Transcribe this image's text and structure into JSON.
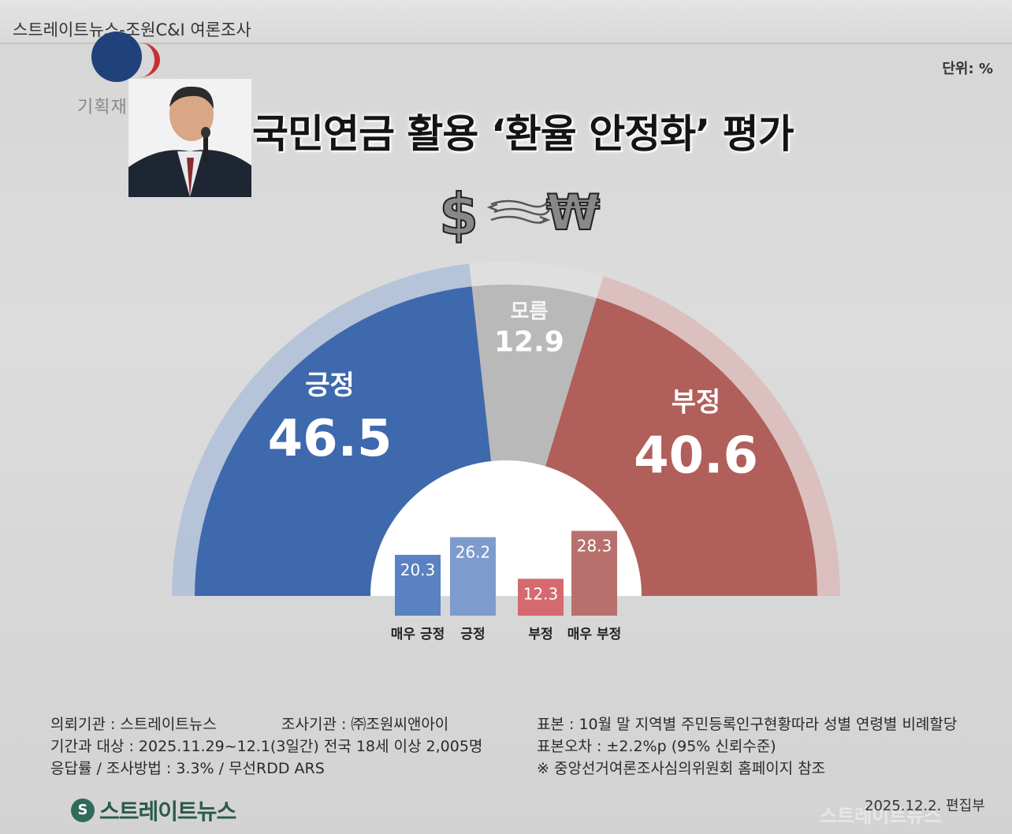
{
  "header": {
    "source_line": "스트레이트뉴스-조원C&I 여론조사"
  },
  "unit_label": "단위: %",
  "emblem_text": "기획재정부",
  "title": "국민연금 활용 ‘환율 안정화’ 평가",
  "chart_data": [
    {
      "type": "pie",
      "title": "국민연금 활용 ‘환율 안정화’ 평가",
      "style": "semicircle-donut",
      "categories": [
        "긍정",
        "모름",
        "부정"
      ],
      "values": [
        46.5,
        12.9,
        40.6
      ],
      "colors": [
        "#3f69ad",
        "#b9b9b9",
        "#b05f5a"
      ]
    },
    {
      "type": "bar",
      "categories": [
        "매우 긍정",
        "긍정",
        "부정",
        "매우 부정"
      ],
      "values": [
        20.3,
        26.2,
        12.3,
        28.3
      ],
      "colors": [
        "#5a81c1",
        "#7d9ccd",
        "#d46a6f",
        "#b8706c"
      ]
    }
  ],
  "footer": {
    "client": "의뢰기관 : 스트레이트뉴스",
    "agency": "조사기관 : ㈜조원씨앤아이",
    "period": "기간과 대상 : 2025.11.29~12.1(3일간)   전국 18세 이상  2,005명",
    "method": "응답률 / 조사방법 : 3.3% / 무선RDD ARS",
    "sample": "표본 : 10월 말 지역별 주민등록인구현황따라 성별 연령별 비례할당",
    "error": "표본오차 : ±2.2%p (95% 신뢰수준)",
    "note": "※ 중앙선거여론조사심의위원회 홈페이지 참조"
  },
  "logo_text": "스트레이트뉴스",
  "date_line": "2025.12.2. 편집부",
  "watermark": "스트레이트뉴스"
}
